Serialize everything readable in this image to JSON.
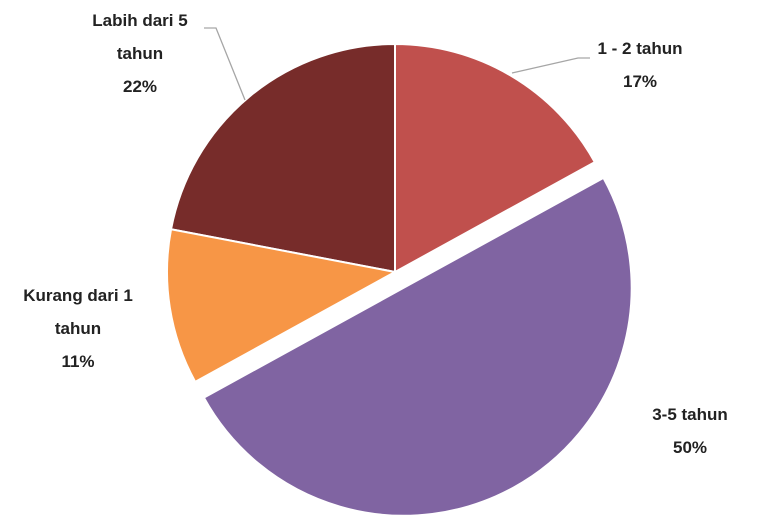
{
  "chart_data": {
    "type": "pie",
    "categories": [
      "1 - 2 tahun",
      "3-5 tahun",
      "Kurang dari 1 tahun",
      "Labih dari 5 tahun"
    ],
    "values": [
      17,
      50,
      11,
      22
    ],
    "value_labels": [
      "17%",
      "50%",
      "11%",
      "22%"
    ],
    "colors": [
      "#c0504d",
      "#8064a2",
      "#f79646",
      "#772c2a"
    ],
    "exploded": [
      false,
      true,
      false,
      false
    ]
  }
}
